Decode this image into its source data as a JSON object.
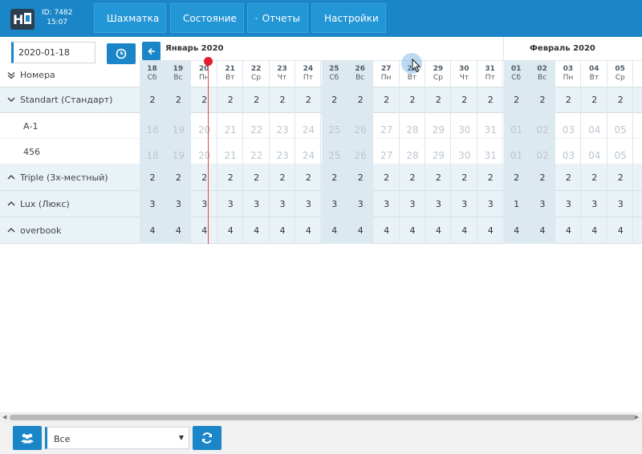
{
  "header": {
    "id_label": "ID: 7482",
    "time": "15:07",
    "nav": [
      {
        "label": "Шахматка",
        "icon": "grid-icon"
      },
      {
        "label": "Состояние",
        "icon": "checkbox-icon"
      },
      {
        "label": "Отчеты",
        "icon": "list-icon"
      },
      {
        "label": "Настройки",
        "icon": "gear-icon"
      }
    ]
  },
  "left": {
    "date_value": "2020-01-18",
    "rooms_header": "Номера"
  },
  "calendar": {
    "month1": "Январь 2020",
    "month2": "Февраль 2020",
    "days": [
      {
        "n": "18",
        "d": "Сб",
        "we": true
      },
      {
        "n": "19",
        "d": "Вс",
        "we": true
      },
      {
        "n": "20",
        "d": "Пн",
        "we": false
      },
      {
        "n": "21",
        "d": "Вт",
        "we": false
      },
      {
        "n": "22",
        "d": "Ср",
        "we": false
      },
      {
        "n": "23",
        "d": "Чт",
        "we": false
      },
      {
        "n": "24",
        "d": "Пт",
        "we": false
      },
      {
        "n": "25",
        "d": "Сб",
        "we": true
      },
      {
        "n": "26",
        "d": "Вс",
        "we": true
      },
      {
        "n": "27",
        "d": "Пн",
        "we": false
      },
      {
        "n": "28",
        "d": "Вт",
        "we": false
      },
      {
        "n": "29",
        "d": "Ср",
        "we": false
      },
      {
        "n": "30",
        "d": "Чт",
        "we": false
      },
      {
        "n": "31",
        "d": "Пт",
        "we": false
      },
      {
        "n": "01",
        "d": "Сб",
        "we": true
      },
      {
        "n": "02",
        "d": "Вс",
        "we": true
      },
      {
        "n": "03",
        "d": "Пн",
        "we": false
      },
      {
        "n": "04",
        "d": "Вт",
        "we": false
      },
      {
        "n": "05",
        "d": "Ср",
        "we": false
      }
    ]
  },
  "rows": [
    {
      "type": "cat",
      "label": "Standart (Стандарт)",
      "values": [
        "2",
        "2",
        "2",
        "2",
        "2",
        "2",
        "2",
        "2",
        "2",
        "2",
        "2",
        "2",
        "2",
        "2",
        "2",
        "2",
        "2",
        "2",
        "2"
      ]
    },
    {
      "type": "room",
      "label": "А-1",
      "values": [
        "18",
        "19",
        "20",
        "21",
        "22",
        "23",
        "24",
        "25",
        "26",
        "27",
        "28",
        "29",
        "30",
        "31",
        "01",
        "02",
        "03",
        "04",
        "05"
      ]
    },
    {
      "type": "room",
      "label": "456",
      "values": [
        "18",
        "19",
        "20",
        "21",
        "22",
        "23",
        "24",
        "25",
        "26",
        "27",
        "28",
        "29",
        "30",
        "31",
        "01",
        "02",
        "03",
        "04",
        "05"
      ]
    },
    {
      "type": "cat",
      "label": "Triple (3х-местный)",
      "values": [
        "2",
        "2",
        "2",
        "2",
        "2",
        "2",
        "2",
        "2",
        "2",
        "2",
        "2",
        "2",
        "2",
        "2",
        "2",
        "2",
        "2",
        "2",
        "2"
      ]
    },
    {
      "type": "cat",
      "label": "Lux (Люкс)",
      "values": [
        "3",
        "3",
        "3",
        "3",
        "3",
        "3",
        "3",
        "3",
        "3",
        "3",
        "3",
        "3",
        "3",
        "3",
        "1",
        "3",
        "3",
        "3",
        "3"
      ]
    },
    {
      "type": "cat",
      "label": "overbook",
      "values": [
        "4",
        "4",
        "4",
        "4",
        "4",
        "4",
        "4",
        "4",
        "4",
        "4",
        "4",
        "4",
        "4",
        "4",
        "4",
        "4",
        "4",
        "4",
        "4"
      ]
    }
  ],
  "footer": {
    "filter_value": "Все"
  },
  "colors": {
    "brand": "#1a86c7",
    "now_line": "#e11e2e"
  }
}
